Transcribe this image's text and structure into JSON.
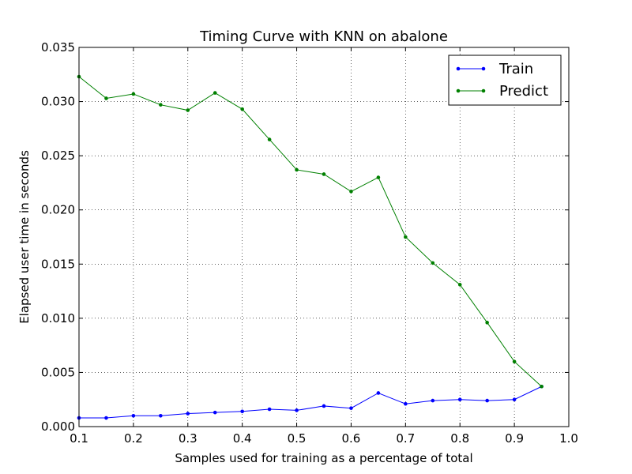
{
  "chart_data": {
    "type": "line",
    "title": "Timing Curve with KNN on abalone",
    "xlabel": "Samples used for training as a percentage of total",
    "ylabel": "Elapsed user time in seconds",
    "xlim": [
      0.1,
      1.0
    ],
    "ylim": [
      0.0,
      0.035
    ],
    "xticks": [
      "0.1",
      "0.2",
      "0.3",
      "0.4",
      "0.5",
      "0.6",
      "0.7",
      "0.8",
      "0.9",
      "1.0"
    ],
    "yticks": [
      "0.000",
      "0.005",
      "0.010",
      "0.015",
      "0.020",
      "0.025",
      "0.030",
      "0.035"
    ],
    "grid": true,
    "legend_position": "top-right",
    "x": [
      0.1,
      0.15,
      0.2,
      0.25,
      0.3,
      0.35,
      0.4,
      0.45,
      0.5,
      0.55,
      0.6,
      0.65,
      0.7,
      0.75,
      0.8,
      0.85,
      0.9,
      0.95
    ],
    "series": [
      {
        "name": "Train",
        "color": "#0000ff",
        "values": [
          0.0008,
          0.0008,
          0.001,
          0.001,
          0.0012,
          0.0013,
          0.0014,
          0.0016,
          0.0015,
          0.0019,
          0.0017,
          0.0031,
          0.0021,
          0.0024,
          0.0025,
          0.0024,
          0.0025,
          0.0037
        ]
      },
      {
        "name": "Predict",
        "color": "#008000",
        "values": [
          0.0323,
          0.0303,
          0.0307,
          0.0297,
          0.0292,
          0.0308,
          0.0293,
          0.0265,
          0.0237,
          0.0233,
          0.0217,
          0.023,
          0.0175,
          0.0151,
          0.0131,
          0.0096,
          0.006,
          0.0037
        ]
      }
    ]
  }
}
